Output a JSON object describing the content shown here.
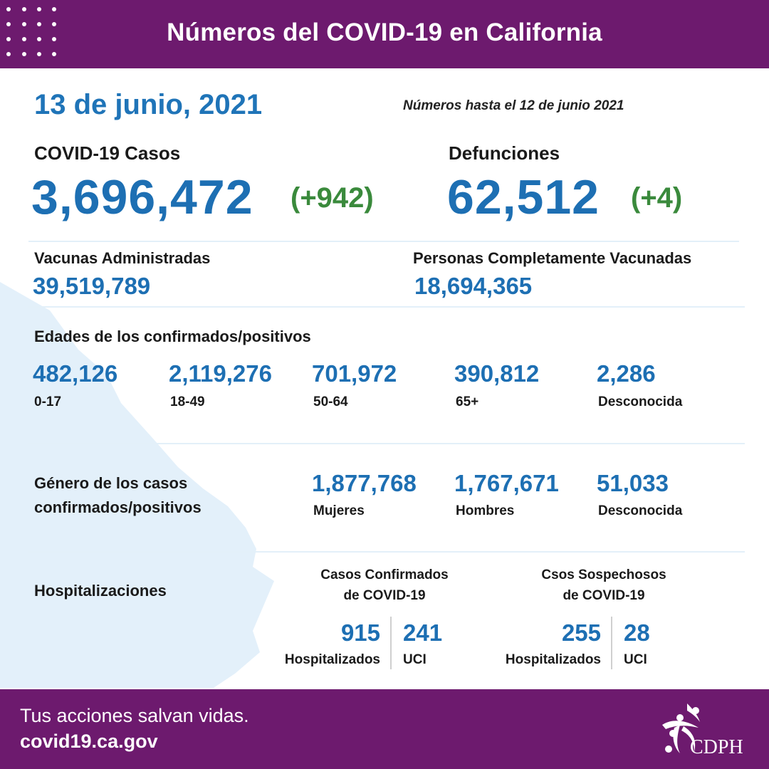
{
  "header": {
    "title": "Números del COVID-19 en California"
  },
  "date": "13 de junio, 2021",
  "as_of": "Números hasta el 12 de junio 2021",
  "cases": {
    "label": "COVID-19 Casos",
    "value": "3,696,472",
    "change": "(+942)"
  },
  "deaths": {
    "label": "Defunciones",
    "value": "62,512",
    "change": "(+4)"
  },
  "vaccines": {
    "label": "Vacunas Administradas",
    "value": "39,519,789"
  },
  "fully_vaccinated": {
    "label": "Personas Completamente Vacunadas",
    "value": "18,694,365"
  },
  "ages": {
    "label": "Edades de los confirmados/positivos",
    "items": [
      {
        "value": "482,126",
        "label": "0-17"
      },
      {
        "value": "2,119,276",
        "label": "18-49"
      },
      {
        "value": "701,972",
        "label": "50-64"
      },
      {
        "value": "390,812",
        "label": "65+"
      },
      {
        "value": "2,286",
        "label": "Desconocida"
      }
    ]
  },
  "gender": {
    "label_line1": "Género de los casos",
    "label_line2": "confirmados/positivos",
    "items": [
      {
        "value": "1,877,768",
        "label": "Mujeres"
      },
      {
        "value": "1,767,671",
        "label": "Hombres"
      },
      {
        "value": "51,033",
        "label": "Desconocida"
      }
    ]
  },
  "hospital": {
    "label": "Hospitalizaciones",
    "confirmed": {
      "title_line1": "Casos Confirmados",
      "title_line2": "de COVID-19",
      "hospitalized_value": "915",
      "hospitalized_label": "Hospitalizados",
      "icu_value": "241",
      "icu_label": "UCI"
    },
    "suspected": {
      "title_line1": "Csos Sospechosos",
      "title_line2": "de COVID-19",
      "hospitalized_value": "255",
      "hospitalized_label": "Hospitalizados",
      "icu_value": "28",
      "icu_label": "UCI"
    }
  },
  "footer": {
    "tagline": "Tus acciones salvan vidas.",
    "url": "covid19.ca.gov",
    "logo_text": "CDPH"
  },
  "colors": {
    "purple": "#6d1a6e",
    "blue": "#1d6fb3",
    "green": "#3a8a3c",
    "map": "#e3f0fa"
  }
}
